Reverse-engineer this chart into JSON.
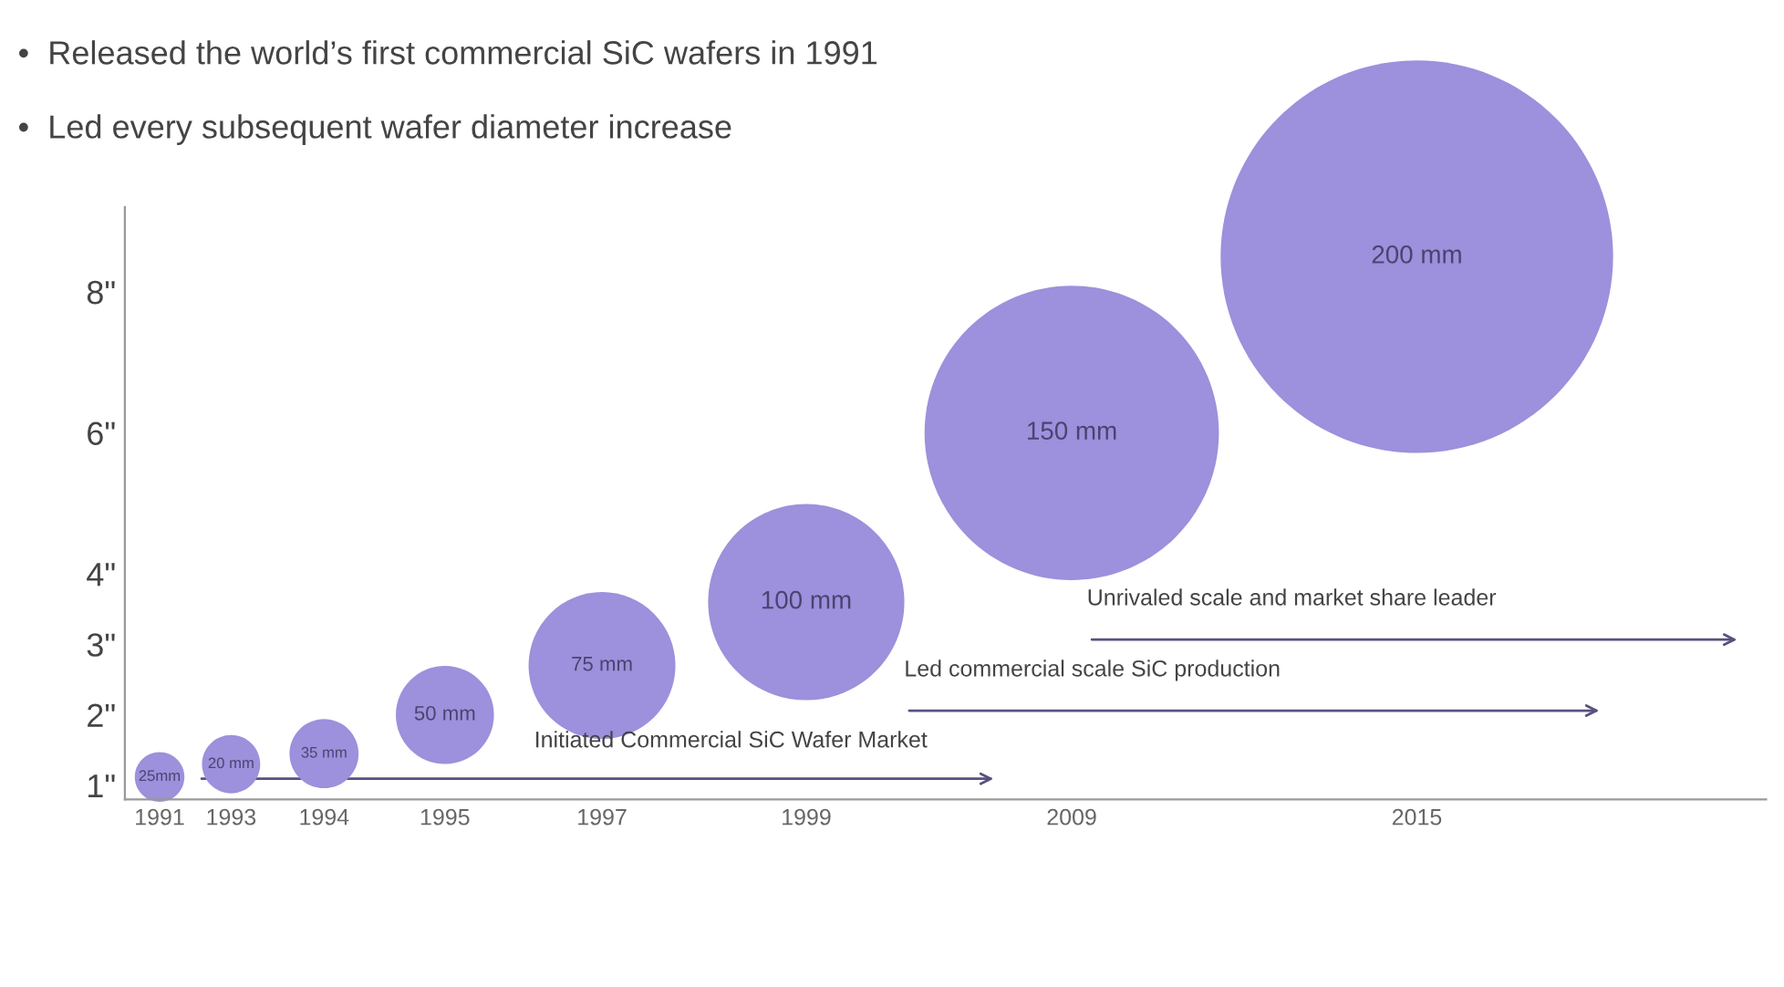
{
  "chart_data": {
    "type": "bubble",
    "title": "•  Released the world’s first commercial SiC wafers in 1991",
    "subtitle": "•  Led every subsequent wafer diameter increase",
    "categories": [
      "1991",
      "1993",
      "1994",
      "1995",
      "1997",
      "1999",
      "2009",
      "2015"
    ],
    "values": [
      1.12,
      1.3,
      1.45,
      2.0,
      2.7,
      3.6,
      6.0,
      8.5
    ],
    "sizes": [
      0.016,
      0.022,
      0.031,
      0.0625,
      0.14,
      0.25,
      0.5625,
      1
    ],
    "color": "#9d90dc",
    "ylim": [
      0.8,
      9.2
    ],
    "yticks": [
      {
        "value": 1,
        "label": "1\""
      },
      {
        "value": 2,
        "label": "2\""
      },
      {
        "value": 3,
        "label": "3\""
      },
      {
        "value": 4,
        "label": "4\""
      },
      {
        "value": 6,
        "label": "6\""
      },
      {
        "value": 8,
        "label": "8\""
      }
    ],
    "annotations": [
      {
        "text": "25mm",
        "x": "1991",
        "y": 1.12
      },
      {
        "text": "20 mm",
        "x": "1993",
        "y": 1.3
      },
      {
        "text": "35 mm",
        "x": "1994",
        "y": 1.45
      },
      {
        "text": "50 mm",
        "x": "1995",
        "y": 2.0
      },
      {
        "text": "75 mm",
        "x": "1997",
        "y": 2.7
      },
      {
        "text": "100 mm",
        "x": "1999",
        "y": 3.6
      },
      {
        "text": "150 mm",
        "x": "2009",
        "y": 6.0
      },
      {
        "text": "200 mm",
        "x": "2015",
        "y": 8.5
      },
      "Initiated Commercial SiC Wafer Market",
      "Led commercial scale SiC production",
      "Unrivaled scale and market share leader"
    ],
    "grid": false
  }
}
